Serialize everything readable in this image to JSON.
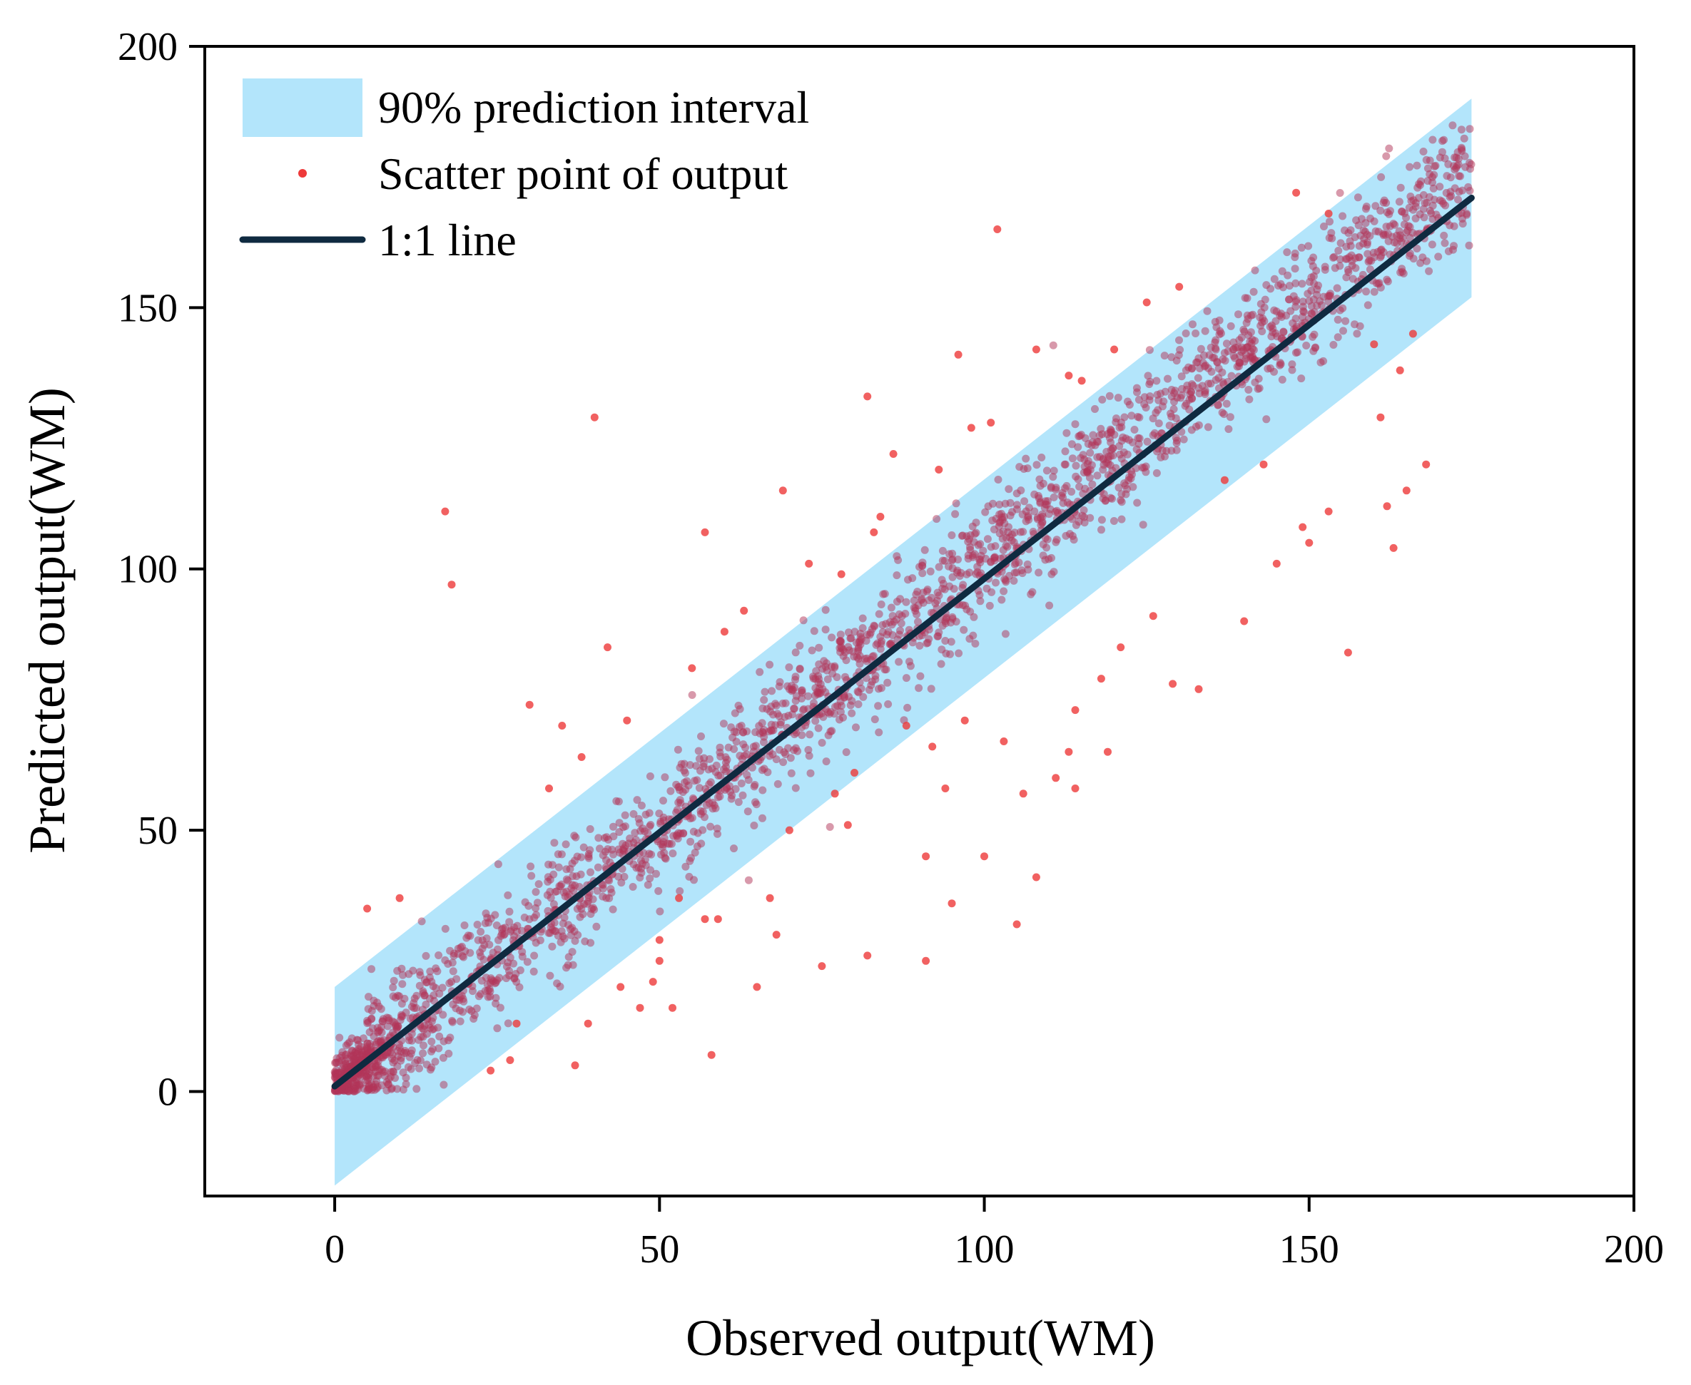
{
  "chart_data": {
    "type": "scatter",
    "title": "",
    "xlabel": "Observed output(WM)",
    "ylabel": "Predicted output(WM)",
    "xlim": [
      -20,
      200
    ],
    "ylim": [
      -20,
      200
    ],
    "x_ticks": [
      0,
      50,
      100,
      150,
      200
    ],
    "y_ticks": [
      0,
      50,
      100,
      150,
      200
    ],
    "grid": false,
    "legend_position": "top-left",
    "legend": [
      {
        "key": "band",
        "label": "90% prediction interval"
      },
      {
        "key": "scatter",
        "label": "Scatter point of output"
      },
      {
        "key": "line",
        "label": "1:1 line"
      }
    ],
    "colors": {
      "band": "#b3e5fb",
      "points_dense": "#b23457",
      "points_outlier": "#ee3a3a",
      "line": "#0f2a40",
      "axis": "#000000"
    },
    "prediction_interval": {
      "x": [
        0,
        175
      ],
      "lower": [
        -18,
        152
      ],
      "upper": [
        20,
        190
      ]
    },
    "one_to_one_line": {
      "x": [
        0,
        175
      ],
      "y": [
        1,
        171
      ]
    },
    "scatter_summary": {
      "count_in_band": 2600,
      "x_range": [
        0,
        175
      ],
      "residual_sd": 6,
      "seed": 7
    },
    "outliers": [
      [
        40,
        129
      ],
      [
        17,
        111
      ],
      [
        18,
        97
      ],
      [
        102,
        165
      ],
      [
        108,
        142
      ],
      [
        96,
        141
      ],
      [
        82,
        133
      ],
      [
        130,
        154
      ],
      [
        125,
        151
      ],
      [
        120,
        142
      ],
      [
        57,
        107
      ],
      [
        69,
        115
      ],
      [
        73,
        101
      ],
      [
        83,
        107
      ],
      [
        42,
        85
      ],
      [
        30,
        74
      ],
      [
        35,
        70
      ],
      [
        45,
        71
      ],
      [
        38,
        64
      ],
      [
        33,
        58
      ],
      [
        10,
        37
      ],
      [
        5,
        35
      ],
      [
        28,
        13
      ],
      [
        27,
        6
      ],
      [
        24,
        4
      ],
      [
        37,
        5
      ],
      [
        39,
        13
      ],
      [
        44,
        20
      ],
      [
        47,
        16
      ],
      [
        49,
        21
      ],
      [
        52,
        16
      ],
      [
        50,
        25
      ],
      [
        50,
        29
      ],
      [
        53,
        37
      ],
      [
        57,
        33
      ],
      [
        58,
        7
      ],
      [
        59,
        33
      ],
      [
        65,
        20
      ],
      [
        67,
        37
      ],
      [
        68,
        30
      ],
      [
        75,
        24
      ],
      [
        82,
        26
      ],
      [
        91,
        25
      ],
      [
        91,
        45
      ],
      [
        100,
        45
      ],
      [
        95,
        36
      ],
      [
        105,
        32
      ],
      [
        108,
        41
      ],
      [
        106,
        57
      ],
      [
        103,
        67
      ],
      [
        111,
        60
      ],
      [
        113,
        65
      ],
      [
        114,
        58
      ],
      [
        114,
        73
      ],
      [
        118,
        79
      ],
      [
        119,
        65
      ],
      [
        121,
        85
      ],
      [
        126,
        91
      ],
      [
        129,
        78
      ],
      [
        133,
        77
      ],
      [
        140,
        90
      ],
      [
        145,
        101
      ],
      [
        149,
        108
      ],
      [
        153,
        111
      ],
      [
        150,
        105
      ],
      [
        156,
        84
      ],
      [
        163,
        104
      ],
      [
        162,
        112
      ],
      [
        168,
        120
      ],
      [
        165,
        115
      ],
      [
        161,
        129
      ],
      [
        164,
        138
      ],
      [
        160,
        143
      ],
      [
        166,
        145
      ],
      [
        148,
        172
      ],
      [
        153,
        168
      ],
      [
        143,
        120
      ],
      [
        137,
        117
      ],
      [
        94,
        58
      ],
      [
        92,
        66
      ],
      [
        97,
        71
      ],
      [
        88,
        70
      ],
      [
        80,
        61
      ],
      [
        77,
        57
      ],
      [
        70,
        50
      ],
      [
        79,
        51
      ],
      [
        93,
        119
      ],
      [
        98,
        127
      ],
      [
        86,
        122
      ],
      [
        113,
        137
      ],
      [
        115,
        136
      ],
      [
        101,
        128
      ],
      [
        78,
        99
      ],
      [
        84,
        110
      ],
      [
        60,
        88
      ],
      [
        63,
        92
      ],
      [
        55,
        81
      ]
    ]
  }
}
